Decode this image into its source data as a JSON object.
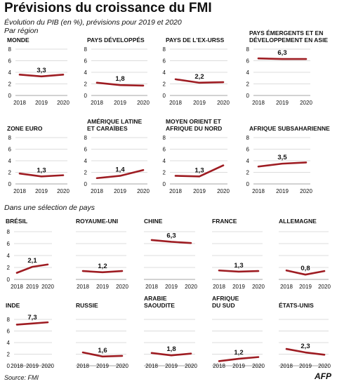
{
  "title": "Prévisions du croissance du FMI",
  "subtitle": "Évolution du PIB (en %), prévisions pour 2019 et 2020",
  "region_note": "Par région",
  "country_section_label": "Dans une sélection de pays",
  "source": "Source: FMI",
  "credit": "AFP",
  "colors": {
    "line": "#9e1c22",
    "grid": "#d0d0d0"
  },
  "chart_data": [
    {
      "type": "line",
      "title_lines": [
        "MONDE"
      ],
      "categories": [
        "2018",
        "2019",
        "2020"
      ],
      "values": [
        3.6,
        3.3,
        3.6
      ],
      "data_label": "3,3",
      "yticks": [
        "0",
        "2",
        "4",
        "6",
        "8"
      ],
      "ylim": [
        0,
        8
      ]
    },
    {
      "type": "line",
      "title_lines": [
        "PAYS DÉVELOPPÉS"
      ],
      "categories": [
        "2018",
        "2019",
        "2020"
      ],
      "values": [
        2.2,
        1.8,
        1.7
      ],
      "data_label": "1,8",
      "yticks": [
        "0",
        "2",
        "4",
        "6",
        "8"
      ],
      "ylim": [
        0,
        8
      ]
    },
    {
      "type": "line",
      "title_lines": [
        "PAYS DE L'EX-URSS"
      ],
      "categories": [
        "2018",
        "2019",
        "2020"
      ],
      "values": [
        2.8,
        2.2,
        2.3
      ],
      "data_label": "2,2",
      "yticks": [
        "0",
        "2",
        "4",
        "6",
        "8"
      ],
      "ylim": [
        0,
        8
      ]
    },
    {
      "type": "line",
      "title_lines": [
        "PAYS ÉMERGENTS ET EN",
        "DÉVELOPPEMENT EN ASIE"
      ],
      "categories": [
        "2018",
        "2019",
        "2020"
      ],
      "values": [
        6.4,
        6.3,
        6.3
      ],
      "data_label": "6,3",
      "yticks": [
        "0",
        "2",
        "4",
        "6",
        "8"
      ],
      "ylim": [
        0,
        8
      ]
    },
    {
      "type": "line",
      "title_lines": [
        "ZONE EURO"
      ],
      "categories": [
        "2018",
        "2019",
        "2020"
      ],
      "values": [
        1.8,
        1.3,
        1.5
      ],
      "data_label": "1,3",
      "yticks": [
        "0",
        "2",
        "4",
        "6",
        "8"
      ],
      "ylim": [
        0,
        8
      ]
    },
    {
      "type": "line",
      "title_lines": [
        "AMÉRIQUE LATINE",
        "ET CARAÏBES"
      ],
      "categories": [
        "2018",
        "2019",
        "2020"
      ],
      "values": [
        1.0,
        1.4,
        2.4
      ],
      "data_label": "1,4",
      "yticks": [
        "0",
        "2",
        "4",
        "6",
        "8"
      ],
      "ylim": [
        0,
        8
      ]
    },
    {
      "type": "line",
      "title_lines": [
        "MOYEN ORIENT ET",
        "AFRIQUE DU NORD"
      ],
      "categories": [
        "2018",
        "2019",
        "2020"
      ],
      "values": [
        1.4,
        1.3,
        3.2
      ],
      "data_label": "1,3",
      "yticks": [
        "0",
        "2",
        "4",
        "6",
        "8"
      ],
      "ylim": [
        0,
        8
      ]
    },
    {
      "type": "line",
      "title_lines": [
        "AFRIQUE SUBSAHARIENNE"
      ],
      "categories": [
        "2018",
        "2019",
        "2020"
      ],
      "values": [
        3.0,
        3.5,
        3.7
      ],
      "data_label": "3,5",
      "yticks": [
        "0",
        "2",
        "4",
        "6",
        "8"
      ],
      "ylim": [
        0,
        8
      ]
    },
    {
      "type": "line",
      "title_lines": [
        "BRÉSIL"
      ],
      "categories": [
        "2018",
        "2019",
        "2020"
      ],
      "values": [
        1.1,
        2.1,
        2.5
      ],
      "data_label": "2,1",
      "yticks": [
        "0",
        "2",
        "4",
        "6",
        "8"
      ],
      "ylim": [
        0,
        8
      ]
    },
    {
      "type": "line",
      "title_lines": [
        "ROYAUME-UNI"
      ],
      "categories": [
        "2018",
        "2019",
        "2020"
      ],
      "values": [
        1.4,
        1.2,
        1.4
      ],
      "data_label": "1,2",
      "yticks": [],
      "ylim": [
        0,
        8
      ]
    },
    {
      "type": "line",
      "title_lines": [
        "CHINE"
      ],
      "categories": [
        "2018",
        "2019",
        "2020"
      ],
      "values": [
        6.6,
        6.3,
        6.1
      ],
      "data_label": "6,3",
      "yticks": [],
      "ylim": [
        0,
        8
      ]
    },
    {
      "type": "line",
      "title_lines": [
        "FRANCE"
      ],
      "categories": [
        "2018",
        "2019",
        "2020"
      ],
      "values": [
        1.5,
        1.3,
        1.4
      ],
      "data_label": "1,3",
      "yticks": [],
      "ylim": [
        0,
        8
      ]
    },
    {
      "type": "line",
      "title_lines": [
        "ALLEMAGNE"
      ],
      "categories": [
        "2018",
        "2019",
        "2020"
      ],
      "values": [
        1.5,
        0.8,
        1.4
      ],
      "data_label": "0,8",
      "yticks": [],
      "ylim": [
        0,
        8
      ]
    },
    {
      "type": "line",
      "title_lines": [
        "INDE"
      ],
      "categories": [
        "2018",
        "2019",
        "2020"
      ],
      "values": [
        7.1,
        7.3,
        7.5
      ],
      "data_label": "7,3",
      "yticks": [
        "0",
        "2",
        "4",
        "6",
        "8"
      ],
      "ylim": [
        0,
        8
      ]
    },
    {
      "type": "line",
      "title_lines": [
        "RUSSIE"
      ],
      "categories": [
        "2018",
        "2019",
        "2020"
      ],
      "values": [
        2.3,
        1.6,
        1.7
      ],
      "data_label": "1,6",
      "yticks": [],
      "ylim": [
        0,
        8
      ]
    },
    {
      "type": "line",
      "title_lines": [
        "ARABIE",
        "SAOUDITE"
      ],
      "categories": [
        "2018",
        "2019",
        "2020"
      ],
      "values": [
        2.2,
        1.8,
        2.1
      ],
      "data_label": "1,8",
      "yticks": [],
      "ylim": [
        0,
        8
      ]
    },
    {
      "type": "line",
      "title_lines": [
        "AFRIQUE",
        "DU SUD"
      ],
      "categories": [
        "2018",
        "2019",
        "2020"
      ],
      "values": [
        0.8,
        1.2,
        1.5
      ],
      "data_label": "1,2",
      "yticks": [],
      "ylim": [
        0,
        8
      ]
    },
    {
      "type": "line",
      "title_lines": [
        "ÉTATS-UNIS"
      ],
      "categories": [
        "2018",
        "2019",
        "2020"
      ],
      "values": [
        2.9,
        2.3,
        1.9
      ],
      "data_label": "2,3",
      "yticks": [],
      "ylim": [
        0,
        8
      ]
    }
  ]
}
